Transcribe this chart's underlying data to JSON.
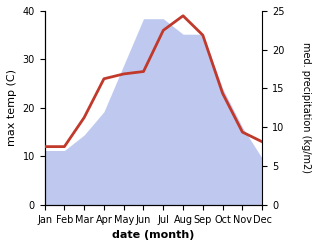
{
  "months": [
    "Jan",
    "Feb",
    "Mar",
    "Apr",
    "May",
    "Jun",
    "Jul",
    "Aug",
    "Sep",
    "Oct",
    "Nov",
    "Dec"
  ],
  "temperature": [
    12,
    12,
    18,
    26,
    27,
    27.5,
    36,
    39,
    35,
    23,
    15,
    13
  ],
  "precipitation": [
    7,
    7,
    9,
    12,
    18,
    24,
    24,
    22,
    22,
    15,
    10,
    6
  ],
  "temp_color": "#c0392b",
  "precip_fill_color": "#b8c4ee",
  "ylabel_left": "max temp (C)",
  "ylabel_right": "med. precipitation (kg/m2)",
  "xlabel": "date (month)",
  "ylim_left": [
    0,
    40
  ],
  "ylim_right": [
    0,
    25
  ],
  "yticks_left": [
    0,
    10,
    20,
    30,
    40
  ],
  "yticks_right": [
    0,
    5,
    10,
    15,
    20,
    25
  ],
  "temp_linewidth": 2.0,
  "figsize": [
    3.18,
    2.47
  ],
  "dpi": 100
}
